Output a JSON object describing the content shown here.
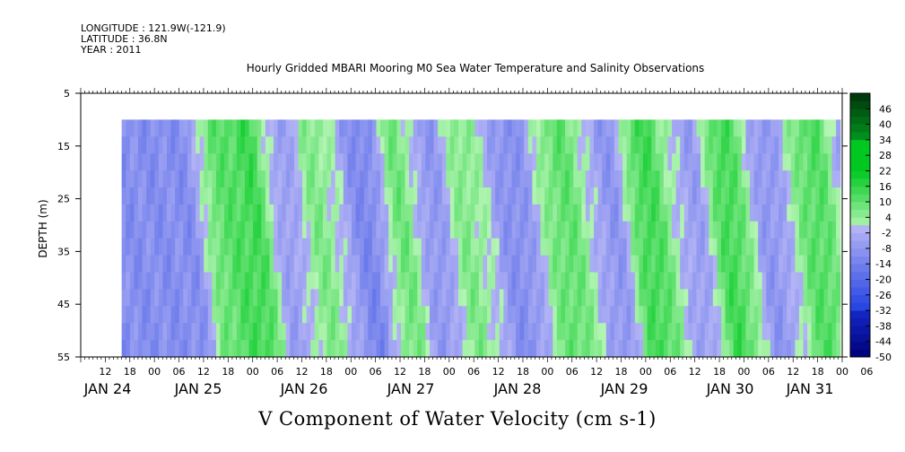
{
  "meta": {
    "lines": [
      "LONGITUDE : 121.9W(-121.9)",
      "LATITUDE : 36.8N",
      "YEAR : 2011"
    ]
  },
  "chart_data": {
    "type": "heatmap",
    "title": "Hourly Gridded MBARI Mooring M0 Sea Water Temperature and Salinity Observations",
    "xlabel": "V Component of Water Velocity (cm s-1)",
    "ylabel": "DEPTH (m)",
    "y_ticks": [
      "5",
      "15",
      "25",
      "35",
      "45",
      "55"
    ],
    "ylim": [
      5,
      55
    ],
    "data_depth_range": [
      10,
      55
    ],
    "x_range_hours": [
      "JAN 24 06:00",
      "JAN 31 18:00"
    ],
    "data_start": "JAN 24 ~16:00",
    "hour_ticks": [
      "12",
      "18",
      "00",
      "06",
      "12",
      "18",
      "00",
      "06",
      "12",
      "18",
      "00",
      "06",
      "12",
      "18",
      "00",
      "06",
      "12",
      "18",
      "00",
      "06",
      "12",
      "18",
      "00",
      "06",
      "12",
      "18",
      "00",
      "06",
      "12",
      "18",
      "00",
      "06"
    ],
    "day_labels": [
      "JAN 24",
      "JAN 25",
      "JAN 26",
      "JAN 27",
      "JAN 28",
      "JAN 29",
      "JAN 30",
      "JAN 31"
    ],
    "colorbar_labels": [
      "46",
      "40",
      "34",
      "28",
      "22",
      "16",
      "10",
      "4",
      "-2",
      "-8",
      "-14",
      "-20",
      "-26",
      "-32",
      "-38",
      "-44",
      "-50"
    ],
    "colorbar_range": [
      -50,
      52
    ],
    "colorbar_step": 3,
    "pattern_description_bands": [
      {
        "hour": 24,
        "value": -10
      },
      {
        "hour": 32,
        "value": 10
      },
      {
        "hour": 40,
        "value": 14
      },
      {
        "hour": 48,
        "value": -6
      },
      {
        "hour": 56,
        "value": 6
      },
      {
        "hour": 68,
        "value": -12
      },
      {
        "hour": 76,
        "value": 8
      },
      {
        "hour": 84,
        "value": -8
      },
      {
        "hour": 92,
        "value": 6
      },
      {
        "hour": 104,
        "value": -10
      },
      {
        "hour": 116,
        "value": 10
      },
      {
        "hour": 128,
        "value": -8
      },
      {
        "hour": 136,
        "value": 14
      },
      {
        "hour": 148,
        "value": -6
      },
      {
        "hour": 156,
        "value": 14
      },
      {
        "hour": 166,
        "value": -8
      },
      {
        "hour": 178,
        "value": 12
      },
      {
        "hour": 188,
        "value": -10
      },
      {
        "hour": 196,
        "value": 8
      }
    ]
  },
  "colors": {
    "green_strong": "#00c820",
    "green_light": "#b4f5b4",
    "blue_light": "#b4b4f5",
    "blue_strong": "#3250e6"
  }
}
